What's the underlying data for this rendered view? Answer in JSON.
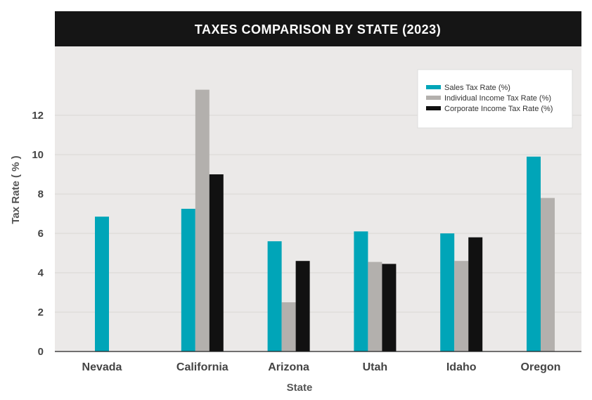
{
  "chart_data": {
    "type": "bar",
    "title": "TAXES COMPARISON BY STATE (2023)",
    "xlabel": "State",
    "ylabel": "Tax Rate ( % )",
    "categories": [
      "Nevada",
      "California",
      "Arizona",
      "Utah",
      "Idaho",
      "Oregon"
    ],
    "yticks": [
      0,
      2,
      4,
      6,
      8,
      10,
      12
    ],
    "ylim": [
      0,
      15.5
    ],
    "grid": true,
    "legend_position": "top-right",
    "series": [
      {
        "name": "Sales Tax Rate (%)",
        "color": "#00a5b8",
        "values": [
          6.85,
          7.25,
          5.6,
          6.1,
          6.0,
          9.9
        ]
      },
      {
        "name": "Individual Income Tax Rate (%)",
        "color": "#b3b0ad",
        "values": [
          null,
          13.3,
          2.5,
          4.55,
          4.6,
          7.8
        ]
      },
      {
        "name": "Corporate Income Tax Rate (%)",
        "color": "#111111",
        "values": [
          null,
          9.0,
          4.6,
          4.45,
          5.8,
          null
        ]
      }
    ]
  }
}
